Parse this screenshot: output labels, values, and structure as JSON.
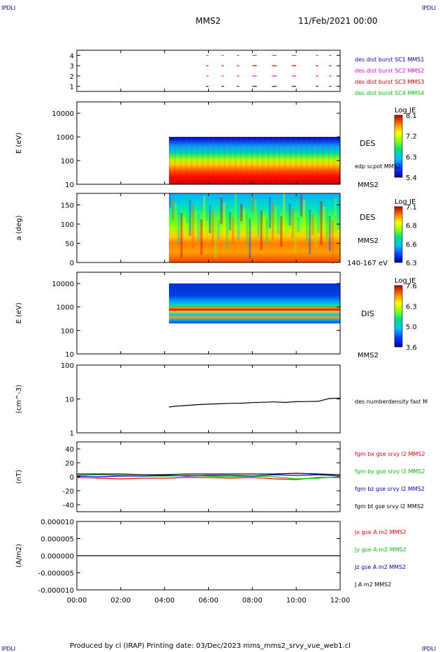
{
  "corner_label": "IPDLI",
  "header": {
    "spacecraft": "MMS2",
    "date": "11/Feb/2021 00:00"
  },
  "footer": {
    "text": "Produced by cl (IRAP)   Printing date: 03/Dec/2023   mms_mms2_srvy_vue_web1.cl"
  },
  "time_axis": {
    "ticks": [
      "00:00",
      "02:00",
      "04:00",
      "06:00",
      "08:00",
      "10:00",
      "12:00"
    ],
    "range_hours": [
      0,
      12
    ]
  },
  "colors": {
    "red": "#ff0000",
    "green": "#00cc00",
    "blue": "#0000cc",
    "magenta": "#ff00ff",
    "black": "#000000"
  },
  "chart_data": [
    {
      "type": "scatter",
      "id": "burst",
      "ytick_labels": [
        "4",
        "3",
        "2",
        "1"
      ],
      "ylim": [
        0.5,
        4.5
      ],
      "legend": [
        {
          "name": "des dist burst SC1 MMS1",
          "color": "#0000cc"
        },
        {
          "name": "des dist burst SC2 MMS2",
          "color": "#ff00ff"
        },
        {
          "name": "des dist burst SC3 MMS3",
          "color": "#cc0000"
        },
        {
          "name": "des dist burst SC4 MMS4",
          "color": "#00cc00"
        }
      ],
      "series": [
        {
          "level": 1,
          "color": "#0000cc",
          "segments": [
            [
              5.9,
              6.0
            ],
            [
              6.6,
              6.7
            ],
            [
              7.3,
              7.4
            ],
            [
              8.0,
              8.2
            ],
            [
              8.9,
              9.1
            ],
            [
              9.8,
              10.0
            ],
            [
              10.9,
              11.0
            ],
            [
              11.5,
              11.6
            ]
          ]
        },
        {
          "level": 2,
          "color": "#ff00ff",
          "segments": [
            [
              5.9,
              6.0
            ],
            [
              6.6,
              6.7
            ],
            [
              7.3,
              7.4
            ],
            [
              8.0,
              8.2
            ],
            [
              8.9,
              9.1
            ],
            [
              9.8,
              10.0
            ],
            [
              10.9,
              11.0
            ],
            [
              11.5,
              11.6
            ]
          ]
        },
        {
          "level": 3,
          "color": "#cc0000",
          "segments": [
            [
              5.9,
              6.0
            ],
            [
              6.6,
              6.7
            ],
            [
              7.3,
              7.4
            ],
            [
              8.0,
              8.2
            ],
            [
              8.9,
              9.1
            ],
            [
              9.8,
              10.0
            ],
            [
              10.9,
              11.0
            ],
            [
              11.5,
              11.6
            ]
          ]
        },
        {
          "level": 4,
          "color": "#00cc00",
          "segments": [
            [
              5.9,
              6.0
            ],
            [
              6.6,
              6.7
            ],
            [
              7.3,
              7.4
            ],
            [
              8.0,
              8.2
            ],
            [
              8.9,
              9.1
            ],
            [
              9.8,
              10.0
            ],
            [
              10.9,
              11.0
            ],
            [
              11.5,
              11.6
            ]
          ]
        }
      ]
    },
    {
      "type": "heatmap",
      "id": "des_energy",
      "ylabel": "E (eV)",
      "ytick_labels": [
        "10000",
        "1000",
        "100",
        "10"
      ],
      "yscale": "log",
      "ylim": [
        10,
        30000
      ],
      "data_start_hour": 4.2,
      "side_labels": [
        "DES",
        "edp scpot MMS2",
        "MMS2"
      ],
      "colorbar": {
        "title": "Log JE",
        "ticks": [
          "8.1",
          "7.2",
          "6.3",
          "5.4"
        ],
        "min": 5.4,
        "max": 8.1
      }
    },
    {
      "type": "heatmap",
      "id": "des_pitch",
      "ylabel": "a (deg)",
      "ytick_labels": [
        "150",
        "100",
        "50",
        "0"
      ],
      "ylim": [
        0,
        180
      ],
      "data_start_hour": 4.2,
      "side_labels": [
        "DES",
        "MMS2",
        "140-167 eV"
      ],
      "colorbar": {
        "title": "Log JE",
        "ticks": [
          "7.1",
          "6.8",
          "6.6",
          "6.3"
        ],
        "min": 6.3,
        "max": 7.1
      }
    },
    {
      "type": "heatmap",
      "id": "dis_energy",
      "ylabel": "E (eV)",
      "ytick_labels": [
        "10000",
        "1000",
        "100",
        "10"
      ],
      "yscale": "log",
      "ylim": [
        10,
        30000
      ],
      "data_start_hour": 4.2,
      "side_labels": [
        "DIS",
        "MMS2"
      ],
      "colorbar": {
        "title": "Log JE",
        "ticks": [
          "7.6",
          "6.3",
          "5.0",
          "3.6"
        ],
        "min": 3.6,
        "max": 7.6
      }
    },
    {
      "type": "line",
      "id": "density",
      "ylabel": "(cm^-3)",
      "ytick_labels": [
        "100",
        "10",
        "1"
      ],
      "yscale": "log",
      "ylim": [
        1,
        100
      ],
      "legend": [
        {
          "name": "des numberdensity fast M",
          "color": "#000000"
        }
      ],
      "x": [
        4.2,
        4.5,
        5.0,
        5.5,
        6.0,
        6.5,
        7.0,
        7.5,
        8.0,
        8.5,
        9.0,
        9.5,
        10.0,
        10.5,
        11.0,
        11.5,
        12.0
      ],
      "y": [
        5.8,
        6.1,
        6.4,
        6.8,
        7.0,
        7.2,
        7.4,
        7.5,
        7.8,
        8.0,
        8.2,
        7.9,
        8.3,
        8.4,
        8.5,
        10.3,
        10.6
      ]
    },
    {
      "type": "line",
      "id": "magnetic_field",
      "ylabel": "(nT)",
      "ytick_labels": [
        "40",
        "20",
        "0",
        "-20",
        "-40"
      ],
      "ylim": [
        -50,
        50
      ],
      "legend": [
        {
          "name": "fgm bx gse srvy l2 MMS2",
          "color": "#ff0000"
        },
        {
          "name": "fgm by gse srvy l2 MMS2",
          "color": "#00cc00"
        },
        {
          "name": "fgm bz gse srvy l2 MMS2",
          "color": "#0000cc"
        },
        {
          "name": "fgm bt gse srvy l2 MMS2",
          "color": "#000000"
        }
      ],
      "x": [
        0,
        1,
        2,
        3,
        4,
        5,
        6,
        7,
        8,
        9,
        10,
        11,
        12
      ],
      "series": [
        {
          "name": "fgm bx gse srvy l2 MMS2",
          "color": "#ff0000",
          "values": [
            -1,
            -2,
            -3,
            -2,
            -2,
            -1,
            -1,
            -2,
            -1,
            -3,
            -4,
            -1,
            -1
          ]
        },
        {
          "name": "fgm by gse srvy l2 MMS2",
          "color": "#00cc00",
          "values": [
            2,
            3,
            2,
            1,
            1,
            2,
            1,
            0,
            1,
            0,
            -3,
            -2,
            0
          ]
        },
        {
          "name": "fgm bz gse srvy l2 MMS2",
          "color": "#0000cc",
          "values": [
            1,
            0,
            1,
            1,
            2,
            1,
            2,
            2,
            1,
            3,
            2,
            3,
            1
          ]
        },
        {
          "name": "fgm bt gse srvy l2 MMS2",
          "color": "#000000",
          "values": [
            4,
            4,
            4,
            3,
            3,
            4,
            4,
            4,
            4,
            4,
            5,
            4,
            3
          ]
        }
      ]
    },
    {
      "type": "line",
      "id": "current_density",
      "ylabel": "(A/m2)",
      "ytick_labels": [
        "0.000010",
        "0.000005",
        "0.000000",
        "-0.000005",
        "-0.000010"
      ],
      "ylim": [
        -1e-05,
        1e-05
      ],
      "legend": [
        {
          "name": "Jx gse A m2 MMS2",
          "color": "#ff0000"
        },
        {
          "name": "Jy gse A m2 MMS2",
          "color": "#00cc00"
        },
        {
          "name": "Jz gse A m2 MMS2",
          "color": "#0000cc"
        },
        {
          "name": "J A m2 MMS2",
          "color": "#000000"
        }
      ],
      "x": [
        0,
        1,
        2,
        3,
        4,
        5,
        6,
        7,
        8,
        9,
        10,
        11,
        12
      ],
      "y": [
        0,
        0,
        0,
        0,
        0,
        0,
        0,
        0,
        0,
        0,
        0,
        0,
        0
      ]
    }
  ]
}
